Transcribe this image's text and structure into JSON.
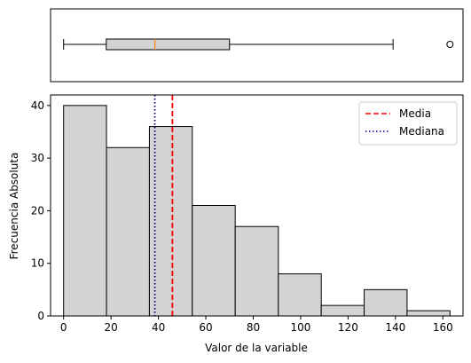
{
  "chart_data": [
    {
      "type": "boxplot",
      "orientation": "horizontal",
      "whisker_low": 0,
      "q1": 18,
      "median": 38.5,
      "q3": 70,
      "whisker_high": 139,
      "outliers": [
        163
      ],
      "xlim": [
        -5.5,
        168.5
      ],
      "title": "",
      "xlabel": "",
      "ylabel": "",
      "colors": {
        "box_fill": "#d3d3d3",
        "median_line": "#ff7f0e",
        "edge": "#000000"
      }
    },
    {
      "type": "histogram",
      "bin_edges": [
        0,
        18.1,
        36.2,
        54.3,
        72.4,
        90.6,
        108.7,
        126.8,
        144.9,
        163
      ],
      "counts": [
        40,
        32,
        36,
        21,
        17,
        8,
        2,
        5,
        1
      ],
      "xlim": [
        -5.5,
        168.5
      ],
      "ylim": [
        0,
        42
      ],
      "xticks": [
        0,
        20,
        40,
        60,
        80,
        100,
        120,
        140,
        160
      ],
      "yticks": [
        0,
        10,
        20,
        30,
        40
      ],
      "xlabel": "Valor de la variable",
      "ylabel": "Frecuencia Absoluta",
      "reference_lines": [
        {
          "name": "Media",
          "value": 45.9,
          "color": "#ff0000",
          "style": "dashed"
        },
        {
          "name": "Mediana",
          "value": 38.5,
          "color": "#00008b",
          "style": "dotted"
        }
      ],
      "legend_position": "upper right",
      "colors": {
        "bar_fill": "#d3d3d3",
        "bar_edge": "#000000"
      }
    }
  ]
}
